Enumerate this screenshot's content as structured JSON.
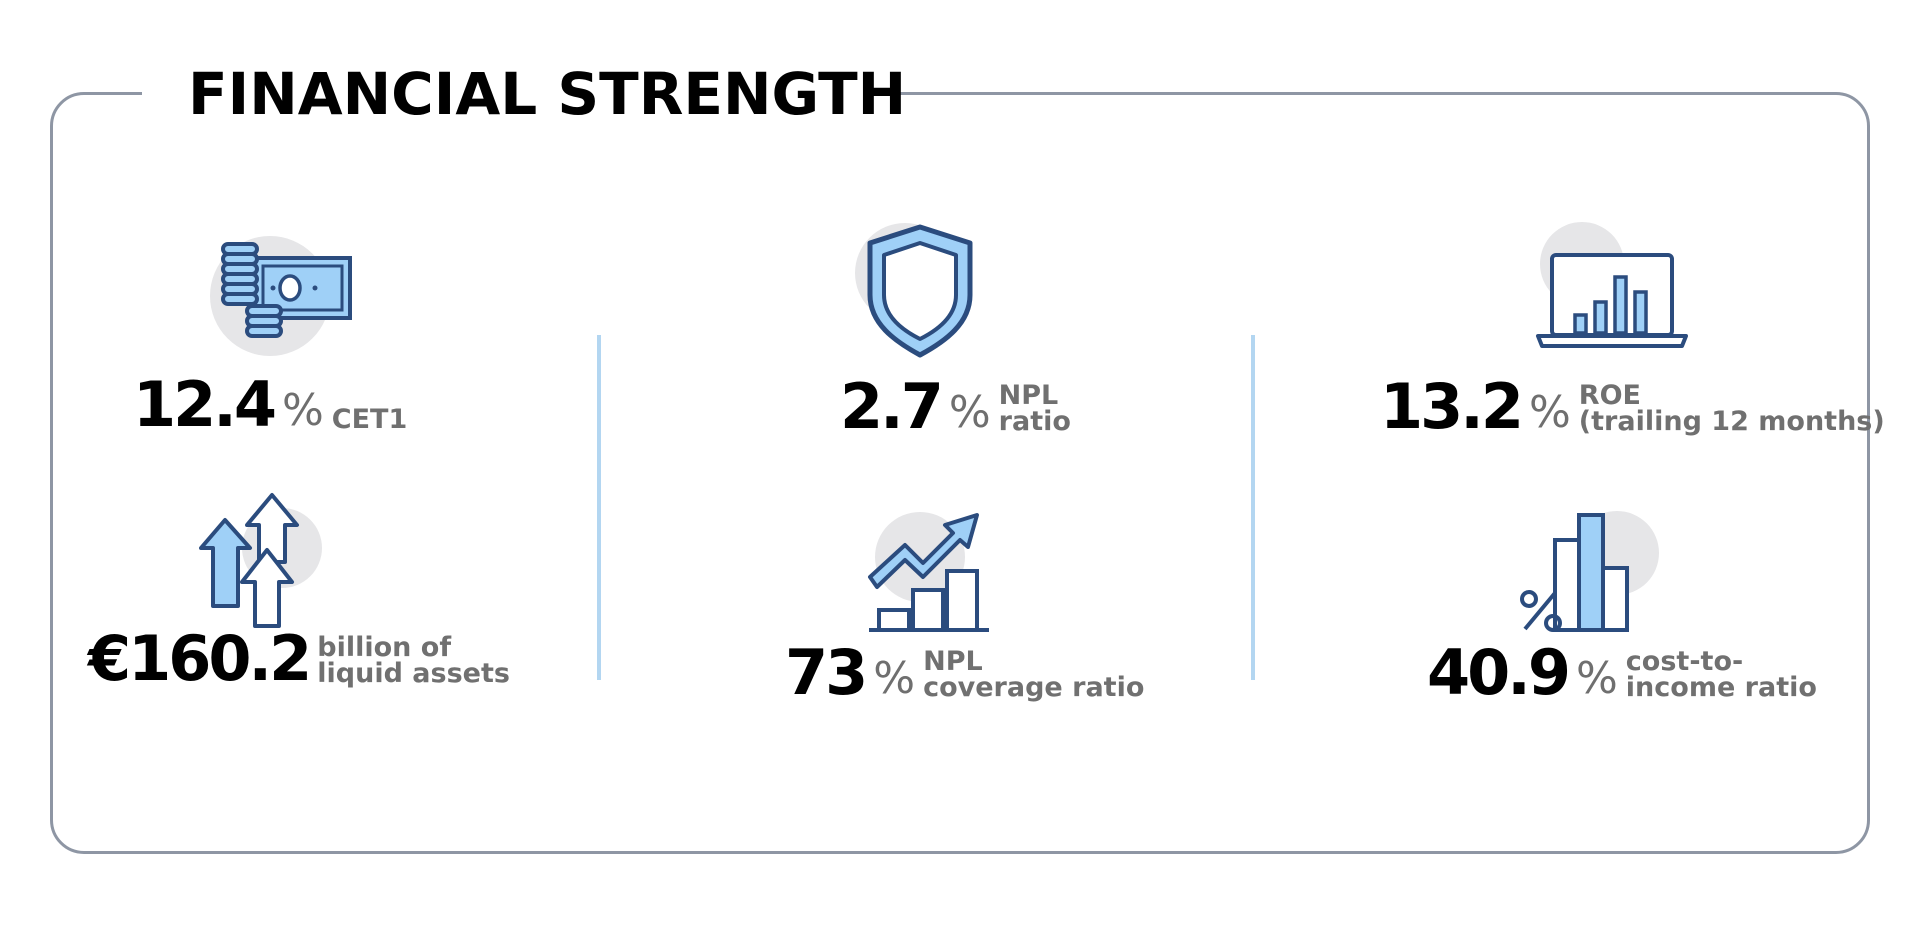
{
  "title": "FINANCIAL STRENGTH",
  "colors": {
    "frame": "#8e96a4",
    "divider": "#b3d6f1",
    "icon_stroke": "#2b4c7e",
    "icon_fill": "#9fd0f7",
    "icon_bg": "#e6e6e8",
    "label": "#707070"
  },
  "metrics": [
    {
      "icon": "money-coins-icon",
      "value": "12.4",
      "unit": "%",
      "label_lines": [
        "CET1"
      ]
    },
    {
      "icon": "shield-icon",
      "value": "2.7",
      "unit": "%",
      "label_lines": [
        "NPL",
        "ratio"
      ]
    },
    {
      "icon": "laptop-chart-icon",
      "value": "13.2",
      "unit": "%",
      "label_lines": [
        "ROE",
        "(trailing 12 months)"
      ]
    },
    {
      "icon": "arrows-up-icon",
      "value": "€160.2",
      "unit": "",
      "label_lines": [
        "billion of",
        "liquid assets"
      ]
    },
    {
      "icon": "trend-chart-icon",
      "value": "73",
      "unit": "%",
      "label_lines": [
        "NPL",
        "coverage ratio"
      ]
    },
    {
      "icon": "percent-bars-icon",
      "value": "40.9",
      "unit": "%",
      "label_lines": [
        "cost-to-",
        "income ratio"
      ]
    }
  ]
}
